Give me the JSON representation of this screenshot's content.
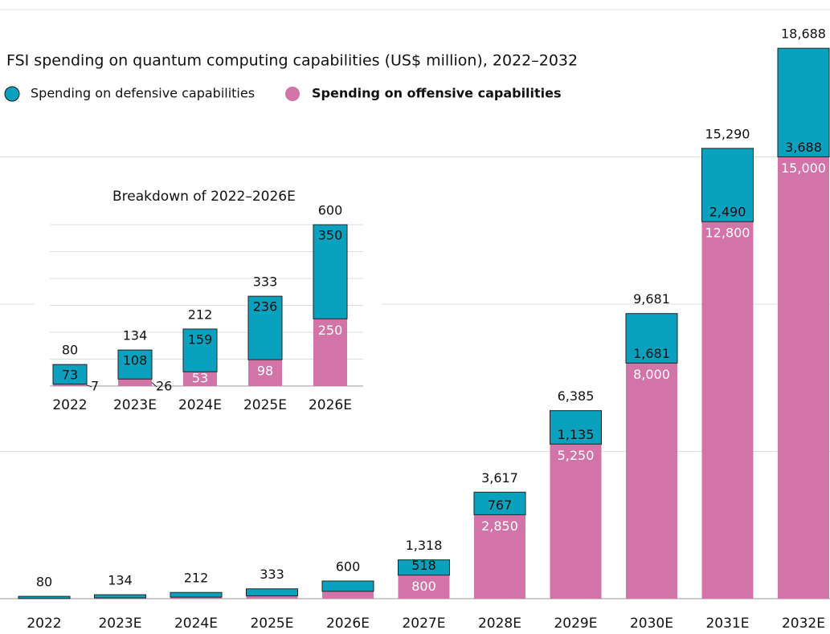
{
  "chart_data": [
    {
      "type": "bar",
      "stacked": true,
      "title": "FSI spending on quantum computing capabilities (US$ million), 2022–2032",
      "categories": [
        "2022",
        "2023E",
        "2024E",
        "2025E",
        "2026E",
        "2027E",
        "2028E",
        "2029E",
        "2030E",
        "2031E",
        "2032E"
      ],
      "series": [
        {
          "name": "Spending on defensive capabilities",
          "color": "#0aa1bf",
          "values": [
            73,
            108,
            159,
            236,
            350,
            518,
            767,
            1135,
            1681,
            2490,
            3688
          ],
          "value_labels": [
            null,
            null,
            null,
            null,
            null,
            "518",
            "767",
            "1,135",
            "1,681",
            "2,490",
            "3,688"
          ]
        },
        {
          "name": "Spending on offensive capabilities",
          "color": "#d274a8",
          "values": [
            7,
            26,
            53,
            98,
            250,
            800,
            2850,
            5250,
            8000,
            12800,
            15000
          ],
          "value_labels": [
            null,
            null,
            null,
            null,
            null,
            "800",
            "2,850",
            "5,250",
            "8,000",
            "12,800",
            "15,000"
          ]
        }
      ],
      "totals": {
        "values": [
          80,
          134,
          212,
          333,
          600,
          1318,
          3617,
          6385,
          9681,
          15290,
          18688
        ],
        "value_labels": [
          "80",
          "134",
          "212",
          "333",
          "600",
          "1,318",
          "3,617",
          "6,385",
          "9,681",
          "15,290",
          "18,688"
        ]
      },
      "ylim": [
        0,
        20000
      ],
      "yticks": [
        0,
        5000,
        10000,
        15000,
        20000
      ],
      "grid": true
    },
    {
      "type": "bar",
      "stacked": true,
      "title": "Breakdown of 2022–2026E",
      "categories": [
        "2022",
        "2023E",
        "2024E",
        "2025E",
        "2026E"
      ],
      "series": [
        {
          "name": "Spending on defensive capabilities",
          "color": "#0aa1bf",
          "values": [
            73,
            108,
            159,
            236,
            350
          ]
        },
        {
          "name": "Spending on offensive capabilities",
          "color": "#d274a8",
          "values": [
            7,
            26,
            53,
            98,
            250
          ]
        }
      ],
      "totals": {
        "values": [
          80,
          134,
          212,
          333,
          600
        ]
      },
      "ylim": [
        0,
        600
      ],
      "yticks": [
        0,
        100,
        200,
        300,
        400,
        500,
        600
      ],
      "grid": true
    }
  ]
}
